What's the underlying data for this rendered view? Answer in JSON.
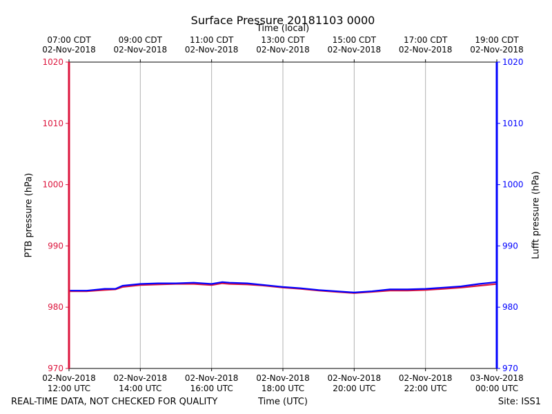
{
  "colors": {
    "ptb": "#dc143c",
    "lufft": "#0000ff",
    "grid": "#b0b0b0",
    "axis": "#000000"
  },
  "header": {
    "title": "Surface Pressure 20181103 0000",
    "top_axis_label": "Time (local)"
  },
  "footer": {
    "left_note": "REAL-TIME DATA, NOT CHECKED FOR QUALITY",
    "x_axis_label": "Time (UTC)",
    "site": "Site: ISS1"
  },
  "chart_data": {
    "type": "line",
    "x_unit": "hours UTC on 02-Nov-2018",
    "xlim": [
      12,
      24
    ],
    "ylim": [
      970,
      1020
    ],
    "grid": "vertical",
    "y_ticks": [
      970,
      980,
      990,
      1000,
      1010,
      1020
    ],
    "x_ticks_bottom": [
      {
        "x": 12,
        "line1": "02-Nov-2018",
        "line2": "12:00 UTC"
      },
      {
        "x": 14,
        "line1": "02-Nov-2018",
        "line2": "14:00 UTC"
      },
      {
        "x": 16,
        "line1": "02-Nov-2018",
        "line2": "16:00 UTC"
      },
      {
        "x": 18,
        "line1": "02-Nov-2018",
        "line2": "18:00 UTC"
      },
      {
        "x": 20,
        "line1": "02-Nov-2018",
        "line2": "20:00 UTC"
      },
      {
        "x": 22,
        "line1": "02-Nov-2018",
        "line2": "22:00 UTC"
      },
      {
        "x": 24,
        "line1": "03-Nov-2018",
        "line2": "00:00 UTC"
      }
    ],
    "x_ticks_top": [
      {
        "x": 12,
        "line1": "07:00 CDT",
        "line2": "02-Nov-2018"
      },
      {
        "x": 14,
        "line1": "09:00 CDT",
        "line2": "02-Nov-2018"
      },
      {
        "x": 16,
        "line1": "11:00 CDT",
        "line2": "02-Nov-2018"
      },
      {
        "x": 18,
        "line1": "13:00 CDT",
        "line2": "02-Nov-2018"
      },
      {
        "x": 20,
        "line1": "15:00 CDT",
        "line2": "02-Nov-2018"
      },
      {
        "x": 22,
        "line1": "17:00 CDT",
        "line2": "02-Nov-2018"
      },
      {
        "x": 24,
        "line1": "19:00 CDT",
        "line2": "02-Nov-2018"
      }
    ],
    "ylabel_left": "PTB pressure (hPa)",
    "ylabel_right": "Lufft pressure (hPa)",
    "series": [
      {
        "name": "PTB pressure (hPa)",
        "color": "#dc143c",
        "x": [
          12.0,
          12.5,
          13.0,
          13.3,
          13.5,
          14.0,
          14.5,
          15.0,
          15.5,
          16.0,
          16.3,
          16.5,
          17.0,
          17.5,
          18.0,
          18.5,
          19.0,
          19.5,
          20.0,
          20.5,
          21.0,
          21.5,
          22.0,
          22.5,
          23.0,
          23.5,
          24.0
        ],
        "y": [
          982.6,
          982.6,
          982.8,
          982.9,
          983.3,
          983.6,
          983.7,
          983.8,
          983.8,
          983.6,
          983.9,
          983.8,
          983.7,
          983.5,
          983.2,
          983.0,
          982.7,
          982.5,
          982.3,
          982.5,
          982.7,
          982.7,
          982.8,
          983.0,
          983.2,
          983.5,
          983.8
        ]
      },
      {
        "name": "Lufft pressure (hPa)",
        "color": "#0000ff",
        "x": [
          12.0,
          12.5,
          13.0,
          13.3,
          13.5,
          14.0,
          14.5,
          15.0,
          15.5,
          16.0,
          16.3,
          16.5,
          17.0,
          17.5,
          18.0,
          18.5,
          19.0,
          19.5,
          20.0,
          20.5,
          21.0,
          21.5,
          22.0,
          22.5,
          23.0,
          23.5,
          24.0
        ],
        "y": [
          982.7,
          982.7,
          983.0,
          983.0,
          983.5,
          983.8,
          983.9,
          983.9,
          984.0,
          983.8,
          984.1,
          984.0,
          983.9,
          983.6,
          983.3,
          983.1,
          982.8,
          982.6,
          982.4,
          982.6,
          982.9,
          982.9,
          983.0,
          983.2,
          983.4,
          983.8,
          984.1
        ]
      }
    ]
  }
}
